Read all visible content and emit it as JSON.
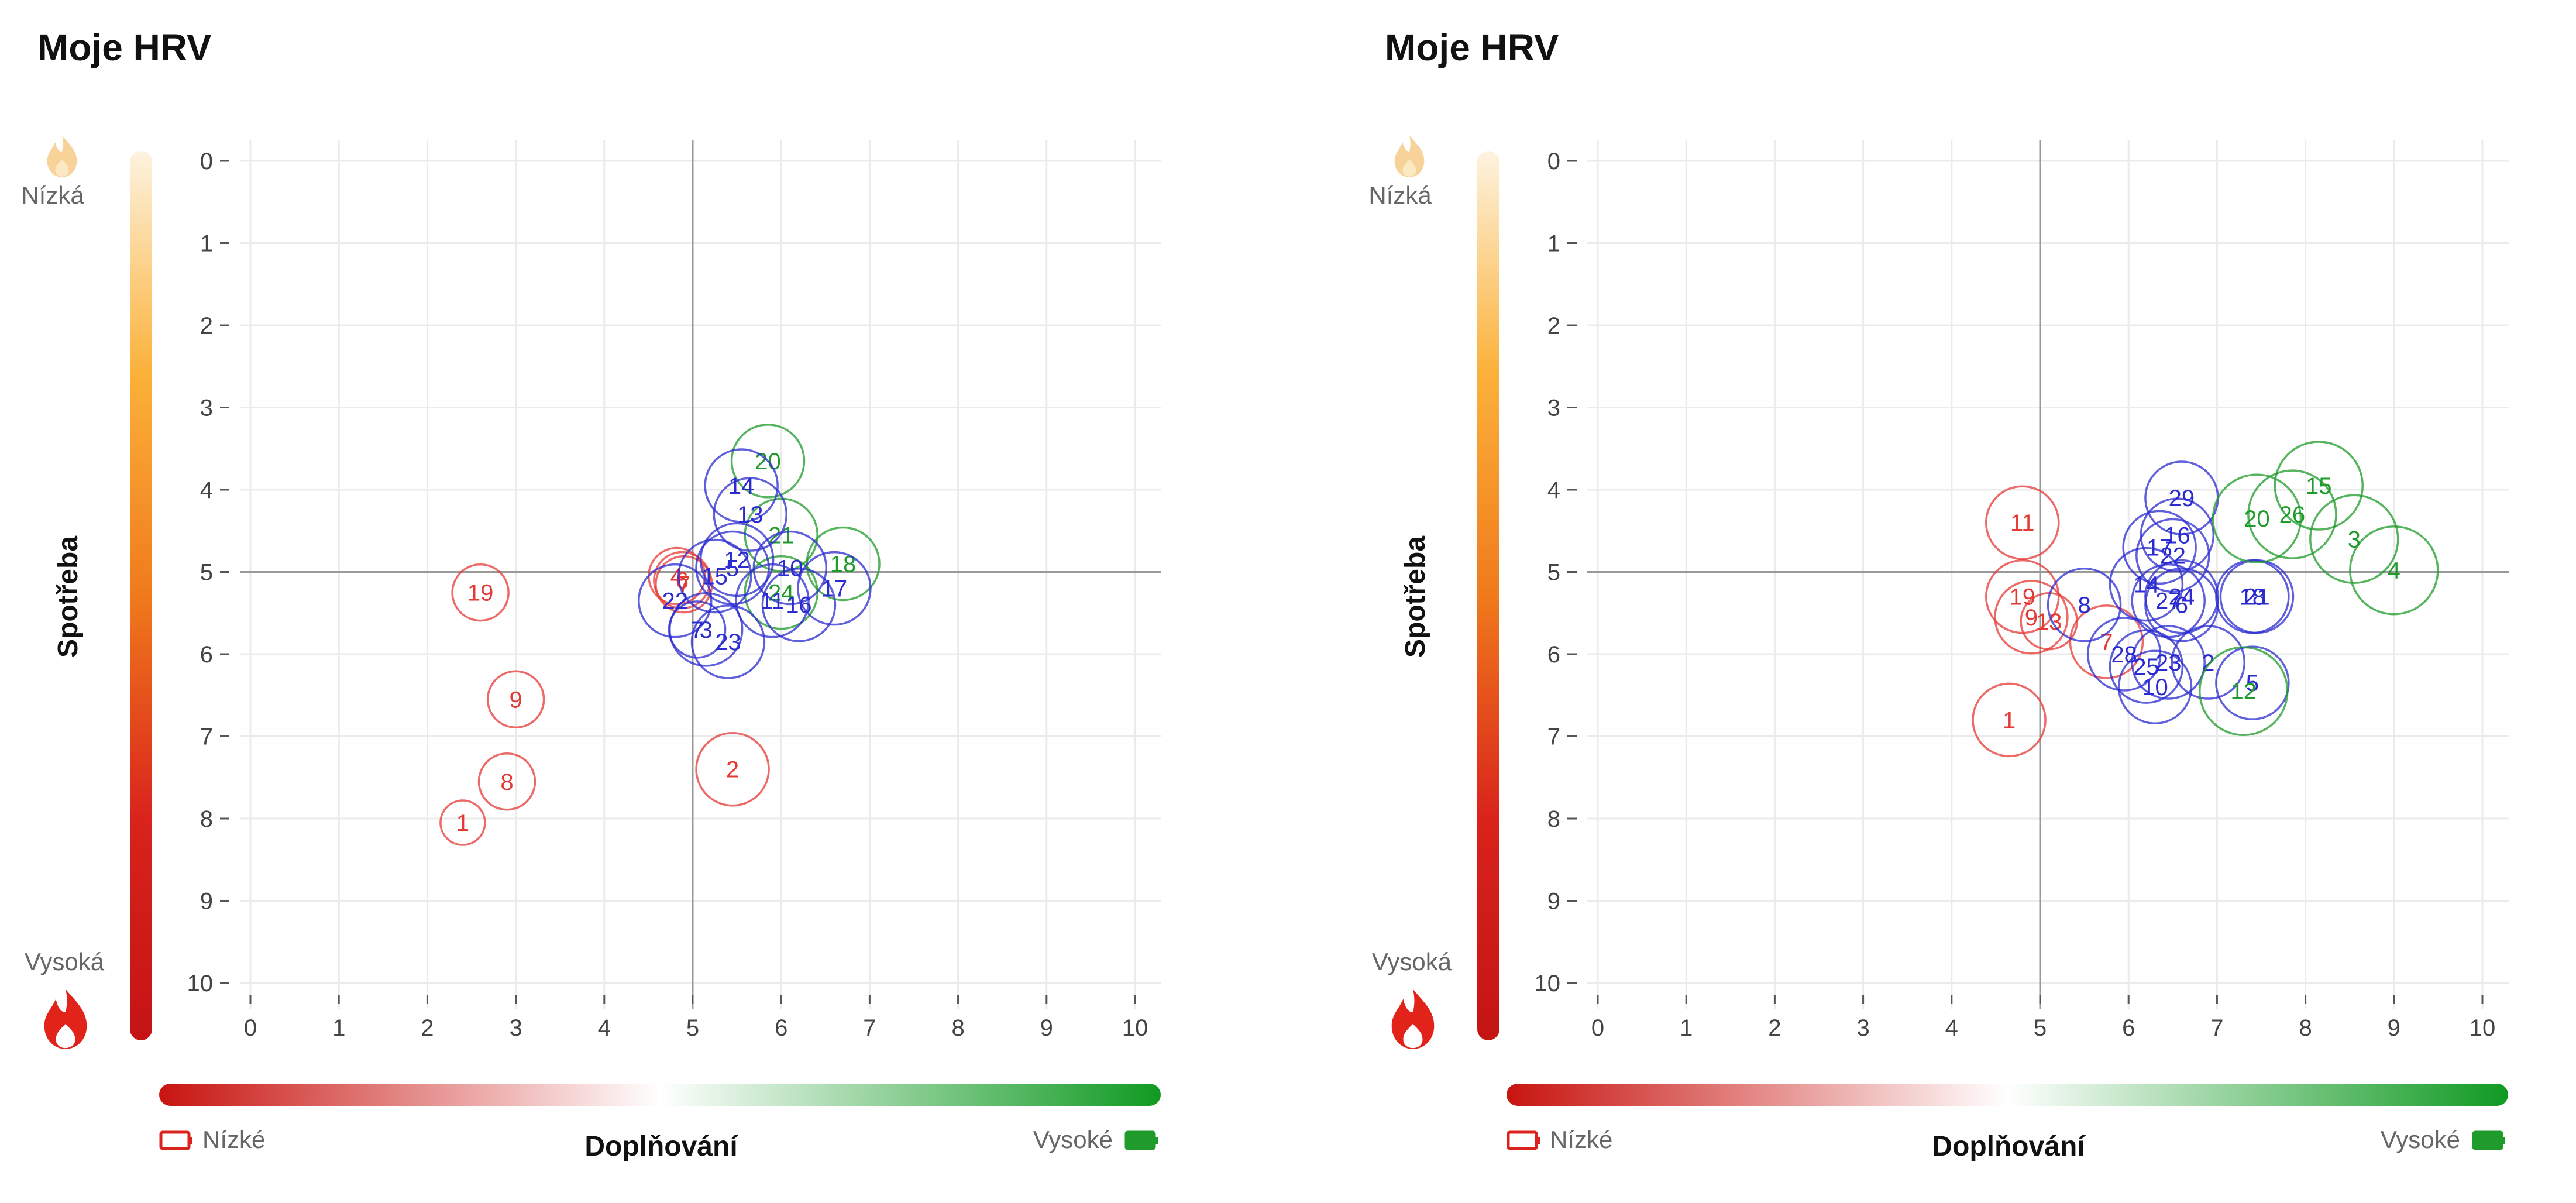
{
  "colors": {
    "red": "#e53935",
    "blue": "#2b2bd1",
    "green": "#1e9b2a",
    "grid": "#ebebeb",
    "axis": "#555555",
    "crosshair": "#9a9a9a",
    "consumption_gradient": [
      "#fdf3e0",
      "#fbb13a",
      "#f07a1c",
      "#d9231c",
      "#c41414"
    ],
    "replenish_gradient": [
      "#c8140f",
      "#ffffff",
      "#109a22"
    ]
  },
  "icons": {
    "low_consumption": "flame-icon",
    "high_consumption": "flame-icon",
    "low_replenish": "battery-empty-icon",
    "high_replenish": "battery-full-icon"
  },
  "chart_data": [
    {
      "type": "scatter",
      "title": "Moje HRV",
      "xlabel": "Doplňování",
      "ylabel": "Spotřeba",
      "x_low_label": "Nízké",
      "x_high_label": "Vysoké",
      "y_low_label": "Nízká",
      "y_high_label": "Vysoká",
      "xlim": [
        0,
        10
      ],
      "ylim": [
        0,
        10
      ],
      "y_inverted": true,
      "xticks": [
        "0",
        "1",
        "2",
        "3",
        "4",
        "5",
        "6",
        "7",
        "8",
        "9",
        "10"
      ],
      "yticks": [
        "0",
        "1",
        "2",
        "3",
        "4",
        "5",
        "6",
        "7",
        "8",
        "9",
        "10"
      ],
      "reference": {
        "x": 5,
        "y": 5
      },
      "grid": true,
      "points": [
        {
          "label": "1",
          "x": 2.4,
          "y": 8.05,
          "size": "s",
          "color": "red"
        },
        {
          "label": "8",
          "x": 2.9,
          "y": 7.55,
          "size": "m",
          "color": "red"
        },
        {
          "label": "9",
          "x": 3.0,
          "y": 6.55,
          "size": "m",
          "color": "red"
        },
        {
          "label": "19",
          "x": 2.6,
          "y": 5.25,
          "size": "m",
          "color": "red"
        },
        {
          "label": "2",
          "x": 5.45,
          "y": 7.4,
          "size": "l",
          "color": "red"
        },
        {
          "label": "4",
          "x": 4.82,
          "y": 5.05,
          "size": "m",
          "color": "red"
        },
        {
          "label": "6",
          "x": 4.88,
          "y": 5.1,
          "size": "m",
          "color": "red"
        },
        {
          "label": "7",
          "x": 4.9,
          "y": 5.15,
          "size": "m",
          "color": "red"
        },
        {
          "label": "20",
          "x": 5.85,
          "y": 3.65,
          "size": "l",
          "color": "green"
        },
        {
          "label": "21",
          "x": 6.0,
          "y": 4.55,
          "size": "l",
          "color": "green"
        },
        {
          "label": "18",
          "x": 6.7,
          "y": 4.9,
          "size": "l",
          "color": "green"
        },
        {
          "label": "24",
          "x": 6.0,
          "y": 5.25,
          "size": "l",
          "color": "green"
        },
        {
          "label": "14",
          "x": 5.55,
          "y": 3.95,
          "size": "l",
          "color": "blue"
        },
        {
          "label": "13",
          "x": 5.65,
          "y": 4.3,
          "size": "l",
          "color": "blue"
        },
        {
          "label": "12",
          "x": 5.5,
          "y": 4.85,
          "size": "l",
          "color": "blue"
        },
        {
          "label": "5",
          "x": 5.45,
          "y": 4.95,
          "size": "l",
          "color": "blue"
        },
        {
          "label": "10",
          "x": 6.1,
          "y": 4.95,
          "size": "l",
          "color": "blue"
        },
        {
          "label": "15",
          "x": 5.25,
          "y": 5.05,
          "size": "l",
          "color": "blue"
        },
        {
          "label": "17",
          "x": 6.6,
          "y": 5.2,
          "size": "l",
          "color": "blue"
        },
        {
          "label": "22",
          "x": 4.8,
          "y": 5.35,
          "size": "l",
          "color": "blue"
        },
        {
          "label": "11",
          "x": 5.9,
          "y": 5.35,
          "size": "l",
          "color": "blue"
        },
        {
          "label": "16",
          "x": 6.2,
          "y": 5.4,
          "size": "l",
          "color": "blue"
        },
        {
          "label": "3",
          "x": 5.15,
          "y": 5.7,
          "size": "l",
          "color": "blue"
        },
        {
          "label": "7",
          "x": 5.05,
          "y": 5.7,
          "size": "m",
          "color": "blue"
        },
        {
          "label": "23",
          "x": 5.4,
          "y": 5.85,
          "size": "l",
          "color": "blue"
        }
      ]
    },
    {
      "type": "scatter",
      "title": "Moje HRV",
      "xlabel": "Doplňování",
      "ylabel": "Spotřeba",
      "x_low_label": "Nízké",
      "x_high_label": "Vysoké",
      "y_low_label": "Nízká",
      "y_high_label": "Vysoká",
      "xlim": [
        0,
        10
      ],
      "ylim": [
        0,
        10
      ],
      "y_inverted": true,
      "xticks": [
        "0",
        "1",
        "2",
        "3",
        "4",
        "5",
        "6",
        "7",
        "8",
        "9",
        "10"
      ],
      "yticks": [
        "0",
        "1",
        "2",
        "3",
        "4",
        "5",
        "6",
        "7",
        "8",
        "9",
        "10"
      ],
      "reference": {
        "x": 5,
        "y": 5
      },
      "grid": true,
      "points": [
        {
          "label": "1",
          "x": 4.65,
          "y": 6.8,
          "size": "l",
          "color": "red"
        },
        {
          "label": "11",
          "x": 4.8,
          "y": 4.4,
          "size": "l",
          "color": "red"
        },
        {
          "label": "19",
          "x": 4.8,
          "y": 5.3,
          "size": "l",
          "color": "red"
        },
        {
          "label": "9",
          "x": 4.9,
          "y": 5.55,
          "size": "l",
          "color": "red"
        },
        {
          "label": "13",
          "x": 5.1,
          "y": 5.6,
          "size": "m",
          "color": "red"
        },
        {
          "label": "7",
          "x": 5.75,
          "y": 5.85,
          "size": "l",
          "color": "red"
        },
        {
          "label": "8",
          "x": 5.5,
          "y": 5.4,
          "size": "l",
          "color": "blue"
        },
        {
          "label": "29",
          "x": 6.6,
          "y": 4.1,
          "size": "l",
          "color": "blue"
        },
        {
          "label": "16",
          "x": 6.55,
          "y": 4.55,
          "size": "l",
          "color": "blue"
        },
        {
          "label": "17",
          "x": 6.35,
          "y": 4.7,
          "size": "l",
          "color": "blue"
        },
        {
          "label": "22",
          "x": 6.5,
          "y": 4.8,
          "size": "l",
          "color": "blue"
        },
        {
          "label": "14",
          "x": 6.2,
          "y": 5.15,
          "size": "l",
          "color": "blue"
        },
        {
          "label": "24",
          "x": 6.6,
          "y": 5.3,
          "size": "l",
          "color": "blue"
        },
        {
          "label": "27",
          "x": 6.45,
          "y": 5.35,
          "size": "l",
          "color": "blue"
        },
        {
          "label": "6",
          "x": 6.6,
          "y": 5.4,
          "size": "l",
          "color": "blue"
        },
        {
          "label": "18",
          "x": 7.4,
          "y": 5.3,
          "size": "l",
          "color": "blue"
        },
        {
          "label": "21",
          "x": 7.45,
          "y": 5.3,
          "size": "l",
          "color": "blue"
        },
        {
          "label": "28",
          "x": 5.95,
          "y": 6.0,
          "size": "l",
          "color": "blue"
        },
        {
          "label": "25",
          "x": 6.2,
          "y": 6.15,
          "size": "l",
          "color": "blue"
        },
        {
          "label": "23",
          "x": 6.45,
          "y": 6.1,
          "size": "l",
          "color": "blue"
        },
        {
          "label": "2",
          "x": 6.9,
          "y": 6.1,
          "size": "l",
          "color": "blue"
        },
        {
          "label": "10",
          "x": 6.3,
          "y": 6.4,
          "size": "l",
          "color": "blue"
        },
        {
          "label": "5",
          "x": 7.4,
          "y": 6.35,
          "size": "l",
          "color": "blue"
        },
        {
          "label": "15",
          "x": 8.15,
          "y": 3.95,
          "size": "xl",
          "color": "green"
        },
        {
          "label": "26",
          "x": 7.85,
          "y": 4.3,
          "size": "xl",
          "color": "green"
        },
        {
          "label": "20",
          "x": 7.45,
          "y": 4.35,
          "size": "xl",
          "color": "green"
        },
        {
          "label": "3",
          "x": 8.55,
          "y": 4.6,
          "size": "xl",
          "color": "green"
        },
        {
          "label": "4",
          "x": 9.0,
          "y": 4.98,
          "size": "xl",
          "color": "green"
        },
        {
          "label": "12",
          "x": 7.3,
          "y": 6.45,
          "size": "xl",
          "color": "green"
        }
      ]
    }
  ]
}
